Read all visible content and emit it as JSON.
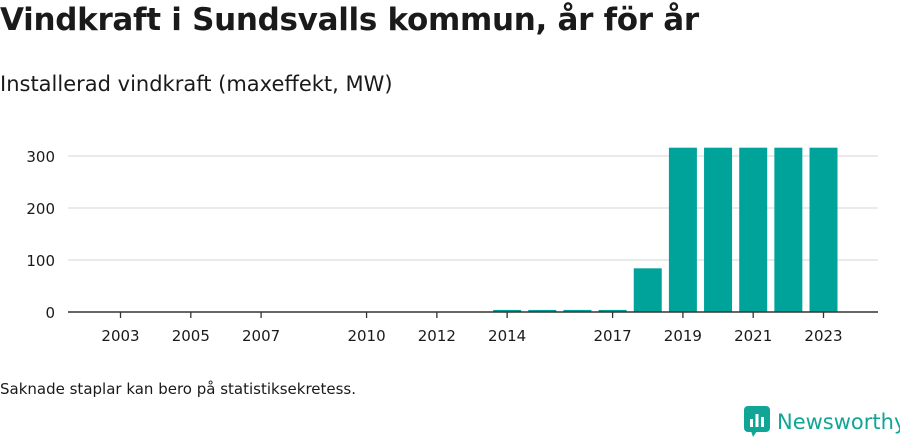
{
  "title": "Vindkraft i Sundsvalls kommun, år för år",
  "subtitle": "Installerad vindkraft (maxeffekt, MW)",
  "note": "Saknade staplar kan bero på statistiksekretess.",
  "brand": {
    "name": "Newsworthy",
    "icon": "newsworthy-logo-icon",
    "color": "#11a595"
  },
  "colors": {
    "bar": "#00a399",
    "grid": "#dedede",
    "axis": "#333333"
  },
  "chart_data": {
    "type": "bar",
    "title": "Installerad vindkraft (maxeffekt, MW)",
    "xlabel": "",
    "ylabel": "",
    "categories": [
      "2003",
      "2004",
      "2005",
      "2006",
      "2007",
      "2008",
      "2009",
      "2010",
      "2011",
      "2012",
      "2013",
      "2014",
      "2015",
      "2016",
      "2017",
      "2018",
      "2019",
      "2020",
      "2021",
      "2022",
      "2023"
    ],
    "values": [
      0,
      0,
      0,
      0,
      0,
      0,
      0,
      0,
      0,
      0,
      0,
      4,
      4,
      4,
      4,
      84,
      316,
      316,
      316,
      316,
      316
    ],
    "x_tick_labels": [
      "2003",
      "2005",
      "2007",
      "2010",
      "2012",
      "2014",
      "2017",
      "2019",
      "2021",
      "2023"
    ],
    "y_ticks": [
      0,
      100,
      200,
      300
    ],
    "ylim": [
      0,
      330
    ],
    "grid": true,
    "legend": "none"
  }
}
